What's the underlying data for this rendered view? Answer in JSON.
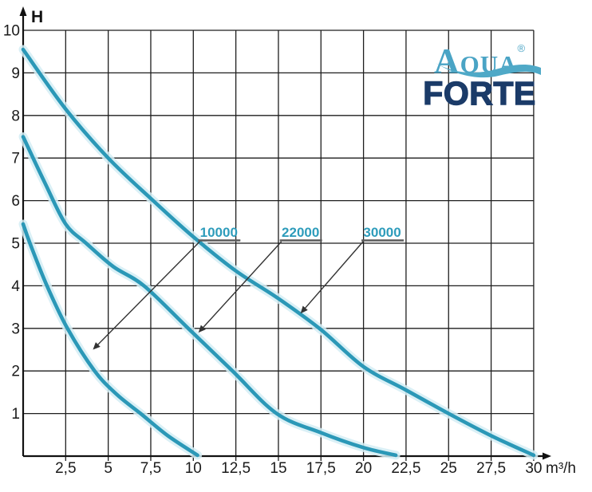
{
  "page": {
    "background": "#ffffff"
  },
  "logo": {
    "brand_top": "Aqua",
    "registered_mark": "®",
    "brand_bottom": "FORTE",
    "color_top": "#4aa4c5",
    "color_bottom": "#1b3b68",
    "wave_color": "#4fa9c7"
  },
  "chart_data": {
    "type": "line",
    "title": "",
    "xlabel": "m³/h",
    "ylabel": "H",
    "xlim": [
      0,
      30
    ],
    "ylim": [
      0,
      10
    ],
    "grid": true,
    "legend_position": "none",
    "x_ticks": [
      2.5,
      5,
      7.5,
      10,
      12.5,
      15,
      17.5,
      20,
      22.5,
      25,
      27.5,
      30
    ],
    "x_tick_labels": [
      "2,5",
      "5",
      "7,5",
      "10",
      "12,5",
      "15",
      "17,5",
      "20",
      "22,5",
      "25",
      "27,5",
      "30"
    ],
    "y_ticks": [
      1,
      2,
      3,
      4,
      5,
      6,
      7,
      8,
      9,
      10
    ],
    "y_tick_labels": [
      "1",
      "2",
      "3",
      "4",
      "5",
      "6",
      "7",
      "8",
      "9",
      "10"
    ],
    "colors": {
      "curve": "#2b98b7",
      "curve_glow": "#d4edf5",
      "grid": "#1e1e1e",
      "axis": "#111111",
      "tick_text": "#1a1a1a",
      "annotation_text": "#2e9cbb",
      "annotation_underline": "#5a5a5a",
      "annotation_leader": "#333333"
    },
    "series": [
      {
        "name": "10000",
        "points": [
          [
            0,
            5.45
          ],
          [
            0.4,
            5.0
          ],
          [
            1.4,
            4.0
          ],
          [
            2.6,
            3.0
          ],
          [
            4.2,
            2.0
          ],
          [
            5.5,
            1.45
          ],
          [
            6.9,
            1.0
          ],
          [
            8.5,
            0.48
          ],
          [
            10.25,
            0.02
          ]
        ]
      },
      {
        "name": "22000",
        "points": [
          [
            0,
            7.5
          ],
          [
            1.3,
            6.4
          ],
          [
            2.5,
            5.45
          ],
          [
            3.7,
            5.0
          ],
          [
            5.3,
            4.45
          ],
          [
            7.1,
            4.0
          ],
          [
            9.7,
            3.0
          ],
          [
            12.3,
            2.0
          ],
          [
            14.9,
            1.0
          ],
          [
            17.5,
            0.55
          ],
          [
            20,
            0.2
          ],
          [
            21.9,
            0.02
          ]
        ]
      },
      {
        "name": "30000",
        "points": [
          [
            0,
            9.55
          ],
          [
            2.5,
            8.15
          ],
          [
            5,
            7.0
          ],
          [
            7.5,
            6.05
          ],
          [
            10,
            5.15
          ],
          [
            12.5,
            4.35
          ],
          [
            15,
            3.7
          ],
          [
            17.5,
            2.97
          ],
          [
            20,
            2.1
          ],
          [
            22.5,
            1.55
          ],
          [
            25,
            1.0
          ],
          [
            27.5,
            0.48
          ],
          [
            30,
            0.02
          ]
        ]
      }
    ],
    "annotations": [
      {
        "label": "10000",
        "label_x": 11.5,
        "label_y": 5.15,
        "tip_x": 4.1,
        "tip_y": 2.5
      },
      {
        "label": "22000",
        "label_x": 16.3,
        "label_y": 5.15,
        "tip_x": 10.3,
        "tip_y": 2.9
      },
      {
        "label": "30000",
        "label_x": 21.1,
        "label_y": 5.15,
        "tip_x": 16.3,
        "tip_y": 3.35
      }
    ]
  }
}
